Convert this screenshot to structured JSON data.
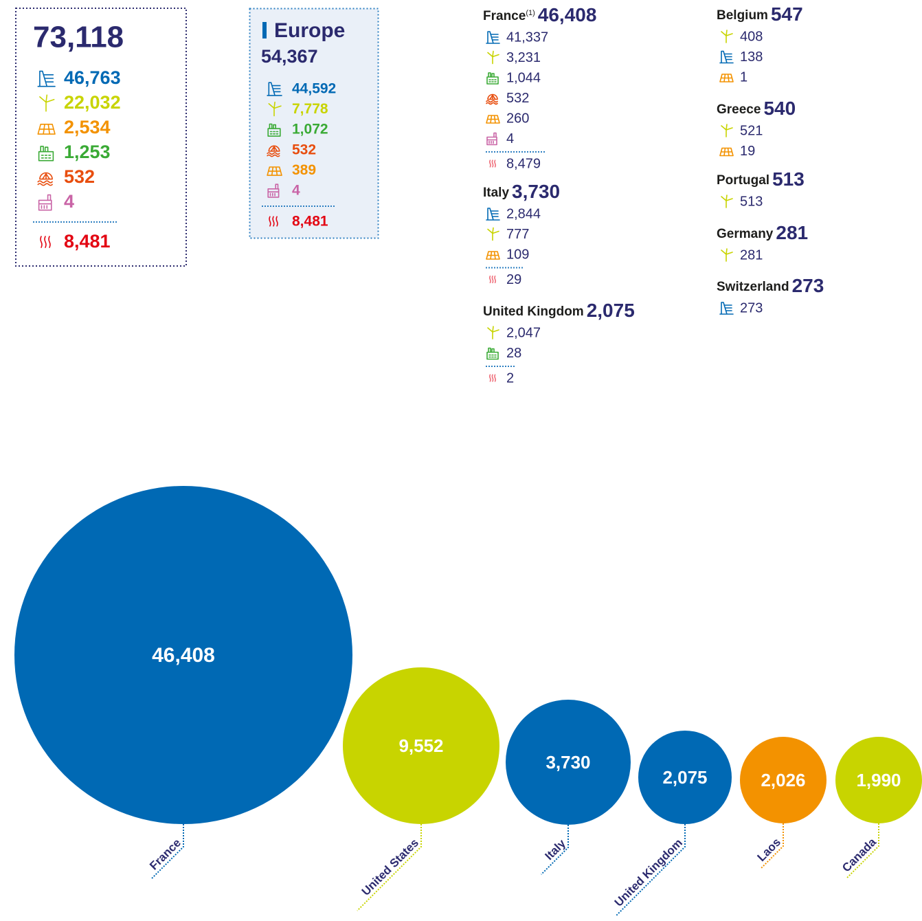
{
  "summary": {
    "total": "73,118",
    "items": [
      {
        "icon": "hydro",
        "color": "#0069b4",
        "value": "46,763"
      },
      {
        "icon": "wind",
        "color": "#c8d400",
        "value": "22,032"
      },
      {
        "icon": "solar",
        "color": "#f39200",
        "value": "2,534"
      },
      {
        "icon": "bio",
        "color": "#3aaa35",
        "value": "1,253"
      },
      {
        "icon": "marine",
        "color": "#e84e0f",
        "value": "532"
      },
      {
        "icon": "other",
        "color": "#c964a6",
        "value": "4"
      }
    ],
    "heat": {
      "icon": "heat",
      "color": "#e30613",
      "value": "8,481"
    }
  },
  "europe": {
    "title": "Europe",
    "total": "54,367",
    "items": [
      {
        "icon": "hydro",
        "color": "#0069b4",
        "value": "44,592"
      },
      {
        "icon": "wind",
        "color": "#c8d400",
        "value": "7,778"
      },
      {
        "icon": "bio",
        "color": "#3aaa35",
        "value": "1,072"
      },
      {
        "icon": "marine",
        "color": "#e84e0f",
        "value": "532"
      },
      {
        "icon": "solar",
        "color": "#f39200",
        "value": "389"
      },
      {
        "icon": "other",
        "color": "#c964a6",
        "value": "4"
      }
    ],
    "heat": {
      "icon": "heat",
      "color": "#e30613",
      "value": "8,481"
    }
  },
  "countries": [
    {
      "name": "France",
      "note": "(1)",
      "total": "46,408",
      "items": [
        {
          "icon": "hydro",
          "color": "#0069b4",
          "value": "41,337"
        },
        {
          "icon": "wind",
          "color": "#c8d400",
          "value": "3,231"
        },
        {
          "icon": "bio",
          "color": "#3aaa35",
          "value": "1,044"
        },
        {
          "icon": "marine",
          "color": "#e84e0f",
          "value": "532"
        },
        {
          "icon": "solar",
          "color": "#f39200",
          "value": "260"
        },
        {
          "icon": "other",
          "color": "#c964a6",
          "value": "4"
        }
      ],
      "heat": {
        "icon": "heat",
        "color": "#ef6f7b",
        "value": "8,479"
      }
    },
    {
      "name": "Italy",
      "total": "3,730",
      "items": [
        {
          "icon": "hydro",
          "color": "#0069b4",
          "value": "2,844"
        },
        {
          "icon": "wind",
          "color": "#c8d400",
          "value": "777"
        },
        {
          "icon": "solar",
          "color": "#f39200",
          "value": "109"
        }
      ],
      "heat": {
        "icon": "heat",
        "color": "#ef6f7b",
        "value": "29"
      }
    },
    {
      "name": "United Kingdom",
      "total": "2,075",
      "items": [
        {
          "icon": "wind",
          "color": "#c8d400",
          "value": "2,047"
        },
        {
          "icon": "bio",
          "color": "#3aaa35",
          "value": "28"
        }
      ],
      "heat": {
        "icon": "heat",
        "color": "#ef6f7b",
        "value": "2"
      }
    },
    {
      "name": "Belgium",
      "total": "547",
      "items": [
        {
          "icon": "wind",
          "color": "#c8d400",
          "value": "408"
        },
        {
          "icon": "hydro",
          "color": "#0069b4",
          "value": "138"
        },
        {
          "icon": "solar",
          "color": "#f39200",
          "value": "1"
        }
      ]
    },
    {
      "name": "Greece",
      "total": "540",
      "items": [
        {
          "icon": "wind",
          "color": "#c8d400",
          "value": "521"
        },
        {
          "icon": "solar",
          "color": "#f39200",
          "value": "19"
        }
      ]
    },
    {
      "name": "Portugal",
      "total": "513",
      "items": [
        {
          "icon": "wind",
          "color": "#c8d400",
          "value": "513"
        }
      ]
    },
    {
      "name": "Germany",
      "total": "281",
      "items": [
        {
          "icon": "wind",
          "color": "#c8d400",
          "value": "281"
        }
      ]
    },
    {
      "name": "Switzerland",
      "total": "273",
      "items": [
        {
          "icon": "hydro",
          "color": "#0069b4",
          "value": "273"
        }
      ]
    }
  ],
  "chart_data": {
    "type": "bubble",
    "categories": [
      "France",
      "United States",
      "Italy",
      "United Kingdom",
      "Laos",
      "Canada"
    ],
    "values": [
      46408,
      9552,
      3730,
      2075,
      2026,
      1990
    ],
    "value_labels": [
      "46,408",
      "9,552",
      "3,730",
      "2,075",
      "2,026",
      "1,990"
    ],
    "colors": [
      "#0069b4",
      "#c8d400",
      "#0069b4",
      "#0069b4",
      "#f39200",
      "#c8d400"
    ]
  }
}
